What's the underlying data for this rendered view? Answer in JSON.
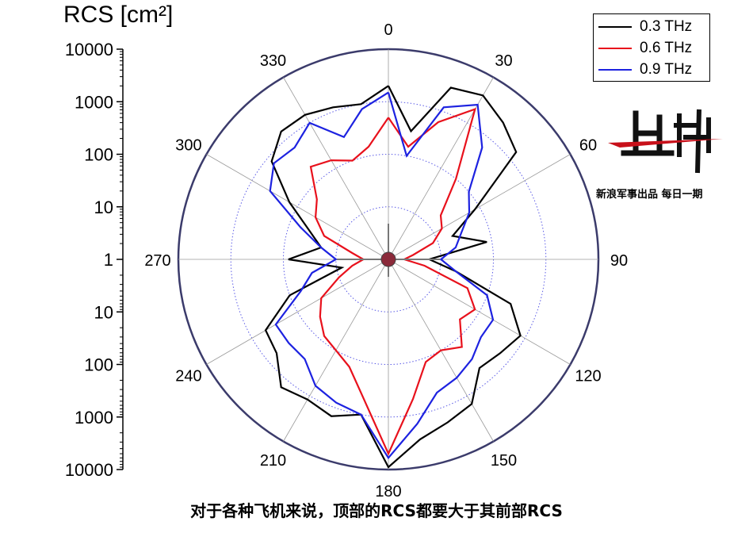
{
  "chart_data": {
    "type": "polar-line",
    "ylabel": "RCS [cm²]",
    "radial_scale": "log, mirrored from center (1 at center, 10000 at outer rim)",
    "radial_ticks": [
      "10000",
      "1000",
      "100",
      "10",
      "1",
      "10",
      "100",
      "1000",
      "10000"
    ],
    "angular_ticks": [
      "0",
      "30",
      "60",
      "90",
      "120",
      "150",
      "180",
      "210",
      "240",
      "270",
      "300",
      "330"
    ],
    "legend_position": "top-right",
    "grid": true,
    "series": [
      {
        "name": "0.3 THz",
        "color": "#000000",
        "angles": [
          0,
          10,
          20,
          30,
          40,
          50,
          60,
          70,
          80,
          90,
          100,
          110,
          120,
          130,
          140,
          150,
          160,
          170,
          180,
          190,
          200,
          210,
          220,
          230,
          240,
          250,
          260,
          270,
          280,
          290,
          300,
          310,
          320,
          330,
          340,
          350
        ],
        "values": [
          2000,
          300,
          3000,
          4000,
          2500,
          1500,
          80,
          20,
          80,
          6,
          20,
          300,
          800,
          600,
          500,
          1500,
          2000,
          3000,
          9000,
          1000,
          1500,
          1200,
          1500,
          600,
          500,
          100,
          8,
          80,
          20,
          40,
          150,
          800,
          1500,
          1500,
          1200,
          1000
        ]
      },
      {
        "name": "0.6 THz",
        "color": "#e8111c",
        "angles": [
          0,
          10,
          20,
          30,
          40,
          50,
          60,
          70,
          80,
          90,
          100,
          110,
          120,
          130,
          140,
          150,
          160,
          170,
          180,
          190,
          200,
          210,
          220,
          230,
          240,
          250,
          260,
          270,
          280,
          290,
          300,
          310,
          320,
          330,
          340,
          350
        ],
        "values": [
          500,
          150,
          600,
          2000,
          100,
          20,
          15,
          8,
          3,
          2,
          5,
          40,
          80,
          60,
          150,
          100,
          120,
          500,
          5000,
          500,
          150,
          100,
          80,
          50,
          30,
          10,
          5,
          3,
          5,
          20,
          40,
          60,
          200,
          150,
          100,
          150
        ]
      },
      {
        "name": "0.9 THz",
        "color": "#1d22e0",
        "angles": [
          0,
          10,
          20,
          30,
          40,
          50,
          60,
          70,
          80,
          90,
          100,
          110,
          120,
          130,
          140,
          150,
          160,
          170,
          180,
          190,
          200,
          210,
          220,
          230,
          240,
          250,
          260,
          270,
          280,
          290,
          300,
          310,
          320,
          330,
          340,
          350
        ],
        "values": [
          1500,
          100,
          1200,
          2500,
          600,
          100,
          60,
          30,
          20,
          10,
          20,
          100,
          200,
          200,
          300,
          400,
          500,
          1500,
          6000,
          1000,
          800,
          600,
          300,
          300,
          300,
          60,
          30,
          10,
          20,
          60,
          400,
          700,
          600,
          1000,
          300,
          800
        ]
      }
    ]
  },
  "caption": "对于各种飞机来说，顶部的RCS都要大于其前部RCS",
  "watermark": {
    "subtitle": "新浪军事出品 每日一期"
  }
}
